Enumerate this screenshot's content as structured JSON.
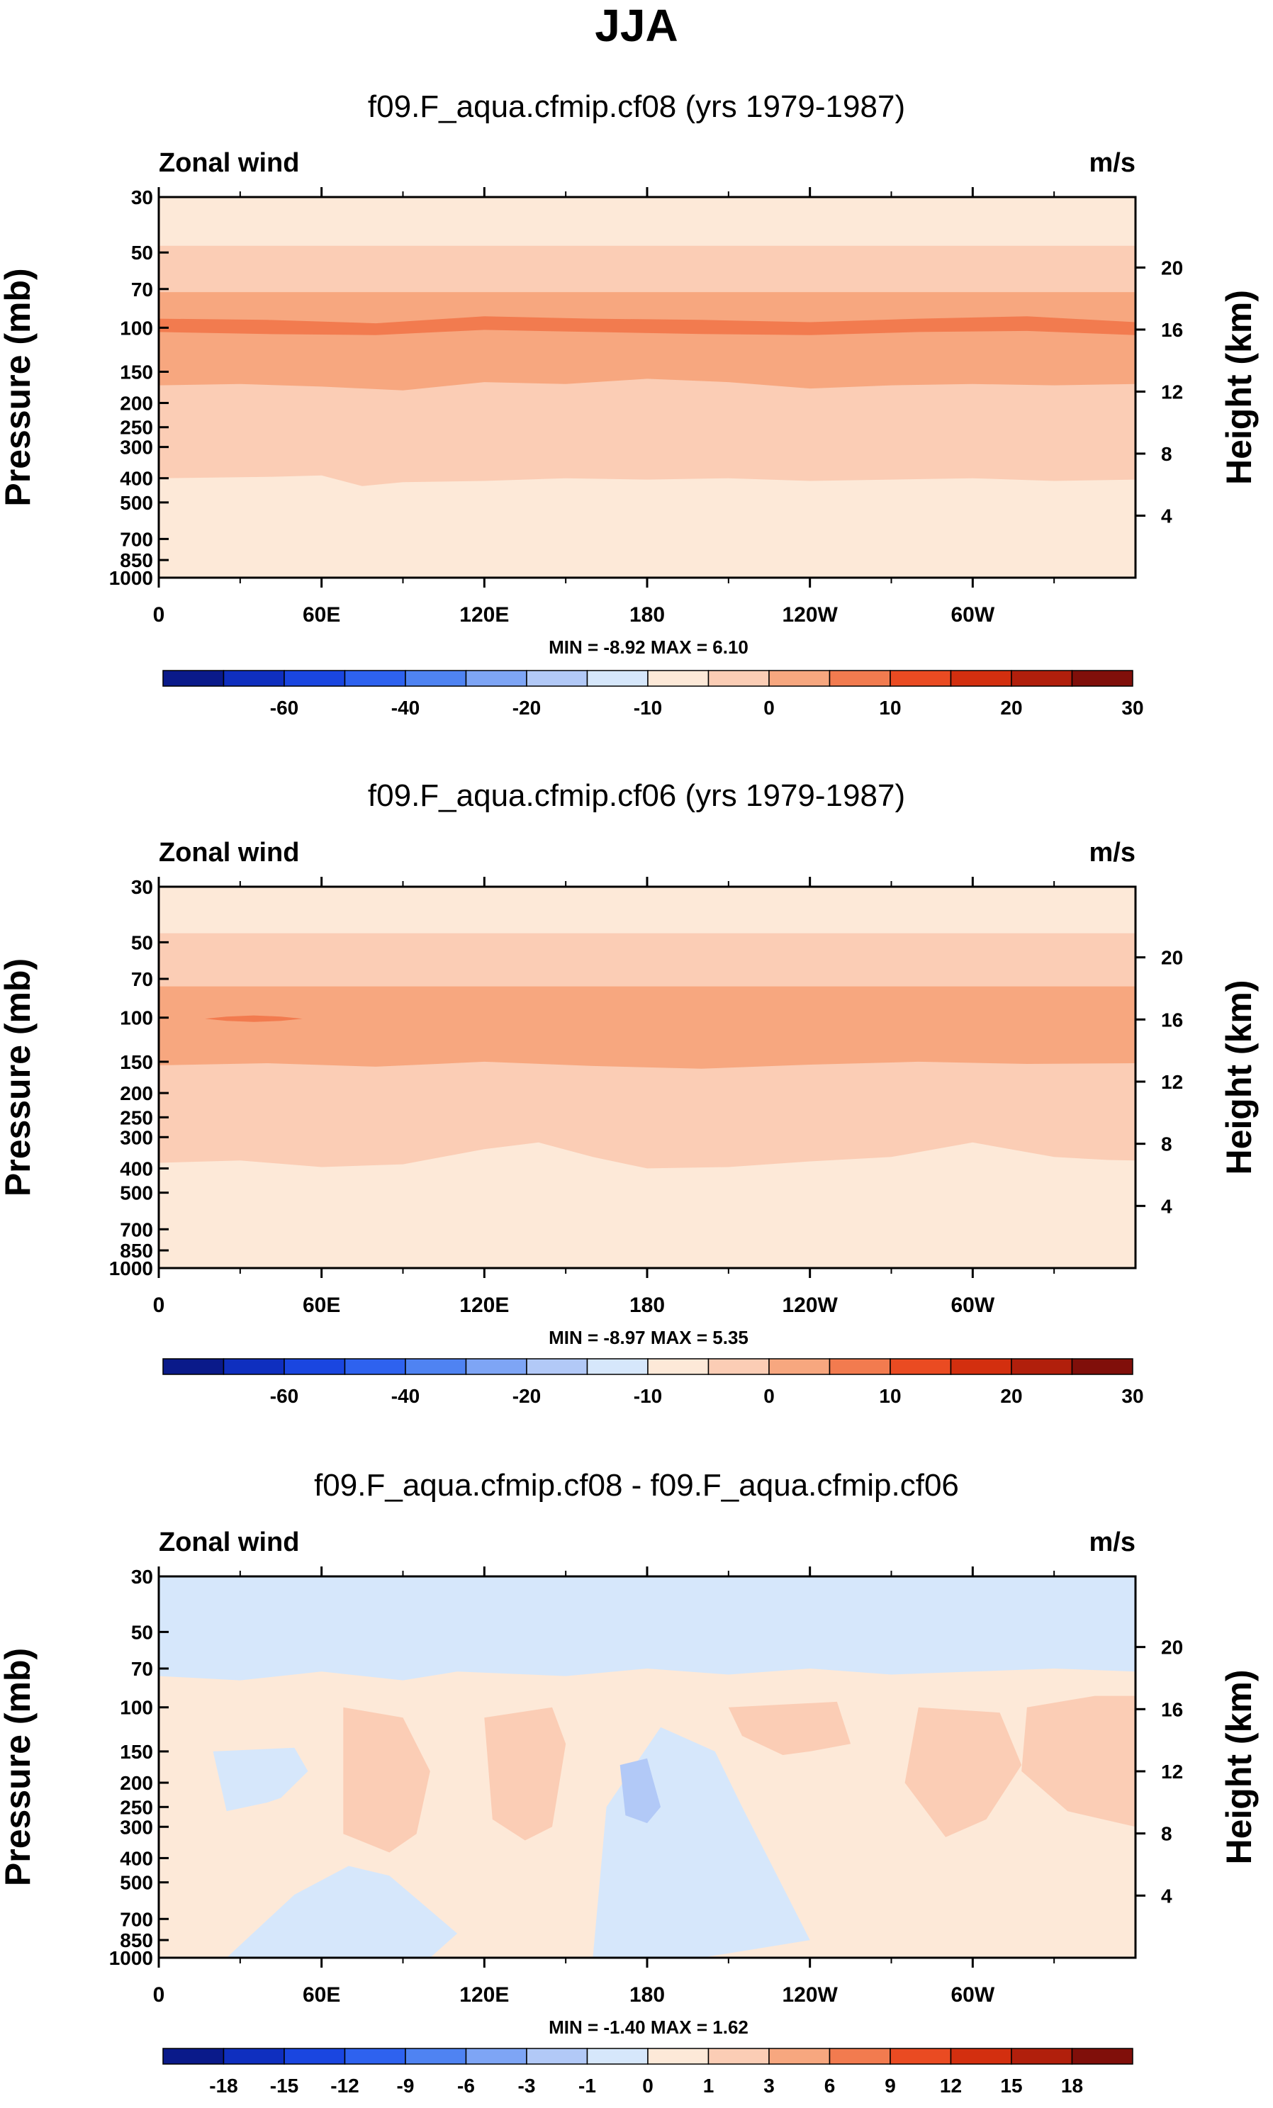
{
  "figure": {
    "season_title": "JJA"
  },
  "colors": {
    "wind_levels": [
      "#0a1a8a",
      "#0f2fbf",
      "#1a46e0",
      "#2e62ef",
      "#4f83f2",
      "#7ea5f5",
      "#b2c9f7",
      "#d6e7fb",
      "#fde9d8",
      "#fbcdb5",
      "#f7a77f",
      "#f27b4f",
      "#ea4b22",
      "#d32f0f",
      "#b11f0c",
      "#800f0a"
    ],
    "diff_levels": [
      "#0a1a8a",
      "#0f2fbf",
      "#1a46e0",
      "#2e62ef",
      "#4f83f2",
      "#7ea5f5",
      "#b2c9f7",
      "#d6e7fb",
      "#fde9d8",
      "#fbcdb5",
      "#f7a77f",
      "#f27b4f",
      "#ea4b22",
      "#d32f0f",
      "#b11f0c",
      "#800f0a"
    ]
  },
  "chart_data": [
    {
      "type": "heatmap",
      "title": "f09.F_aqua.cfmip.cf08 (yrs 1979-1987)",
      "left_label": "Zonal wind",
      "right_label": "m/s",
      "ylabel": "Pressure (mb)",
      "y2label": "Height (km)",
      "xticks": [
        "0",
        "60E",
        "120E",
        "180",
        "120W",
        "60W"
      ],
      "xtick_lon": [
        0,
        60,
        120,
        180,
        240,
        300
      ],
      "xlim": [
        0,
        360
      ],
      "yticks": [
        "30",
        "50",
        "70",
        "100",
        "150",
        "200",
        "250",
        "300",
        "400",
        "500",
        "700",
        "850",
        "1000"
      ],
      "ytick_values": [
        30,
        50,
        70,
        100,
        150,
        200,
        250,
        300,
        400,
        500,
        700,
        850,
        1000
      ],
      "ylim_mb": [
        30,
        1000
      ],
      "y2ticks": [
        "20",
        "16",
        "12",
        "8",
        "4"
      ],
      "y2tick_values": [
        20,
        16,
        12,
        8,
        4
      ],
      "stats": "MIN =  -8.92  MAX =   6.10",
      "colorbar_labels": [
        "-60",
        "-40",
        "-20",
        "-10",
        "0",
        "10",
        "20",
        "30"
      ],
      "colorbar_levels": [
        -70,
        -60,
        -50,
        -40,
        -30,
        -20,
        -15,
        -10,
        -5,
        0,
        5,
        10,
        15,
        20,
        25,
        30,
        35
      ],
      "colorbar_label_idx": [
        2,
        4,
        6,
        8,
        10,
        12,
        14,
        16
      ],
      "layers": [
        {
          "value": -2,
          "top_mb": 30,
          "bottom_mb": 1000
        },
        {
          "value": 2,
          "top_mb": 47,
          "bottom_mb": [
            [
              0,
              400
            ],
            [
              40,
              395
            ],
            [
              60,
              390
            ],
            [
              75,
              430
            ],
            [
              90,
              415
            ],
            [
              120,
              410
            ],
            [
              150,
              400
            ],
            [
              180,
              405
            ],
            [
              210,
              400
            ],
            [
              240,
              410
            ],
            [
              270,
              405
            ],
            [
              300,
              400
            ],
            [
              330,
              410
            ],
            [
              360,
              405
            ]
          ]
        },
        {
          "value": 7,
          "top_mb": 72,
          "bottom_mb": [
            [
              0,
              170
            ],
            [
              30,
              168
            ],
            [
              60,
              172
            ],
            [
              90,
              178
            ],
            [
              120,
              165
            ],
            [
              150,
              168
            ],
            [
              180,
              160
            ],
            [
              210,
              165
            ],
            [
              240,
              175
            ],
            [
              270,
              170
            ],
            [
              300,
              168
            ],
            [
              330,
              170
            ],
            [
              360,
              168
            ]
          ]
        },
        {
          "value": 12,
          "top_mb": [
            [
              0,
              92
            ],
            [
              40,
              93
            ],
            [
              80,
              96
            ],
            [
              120,
              90
            ],
            [
              160,
              92
            ],
            [
              200,
              93
            ],
            [
              240,
              95
            ],
            [
              280,
              92
            ],
            [
              320,
              90
            ],
            [
              360,
              95
            ]
          ],
          "bottom_mb": [
            [
              0,
              104
            ],
            [
              40,
              106
            ],
            [
              80,
              107
            ],
            [
              120,
              102
            ],
            [
              160,
              104
            ],
            [
              200,
              106
            ],
            [
              240,
              107
            ],
            [
              280,
              104
            ],
            [
              320,
              103
            ],
            [
              360,
              107
            ]
          ]
        }
      ]
    },
    {
      "type": "heatmap",
      "title": "f09.F_aqua.cfmip.cf06 (yrs 1979-1987)",
      "left_label": "Zonal wind",
      "right_label": "m/s",
      "ylabel": "Pressure (mb)",
      "y2label": "Height (km)",
      "xticks": [
        "0",
        "60E",
        "120E",
        "180",
        "120W",
        "60W"
      ],
      "xtick_lon": [
        0,
        60,
        120,
        180,
        240,
        300
      ],
      "xlim": [
        0,
        360
      ],
      "yticks": [
        "30",
        "50",
        "70",
        "100",
        "150",
        "200",
        "250",
        "300",
        "400",
        "500",
        "700",
        "850",
        "1000"
      ],
      "ytick_values": [
        30,
        50,
        70,
        100,
        150,
        200,
        250,
        300,
        400,
        500,
        700,
        850,
        1000
      ],
      "ylim_mb": [
        30,
        1000
      ],
      "y2ticks": [
        "20",
        "16",
        "12",
        "8",
        "4"
      ],
      "y2tick_values": [
        20,
        16,
        12,
        8,
        4
      ],
      "stats": "MIN =  -8.97  MAX =   5.35",
      "colorbar_labels": [
        "-60",
        "-40",
        "-20",
        "-10",
        "0",
        "10",
        "20",
        "30"
      ],
      "colorbar_levels": [
        -70,
        -60,
        -50,
        -40,
        -30,
        -20,
        -15,
        -10,
        -5,
        0,
        5,
        10,
        15,
        20,
        25,
        30,
        35
      ],
      "colorbar_label_idx": [
        2,
        4,
        6,
        8,
        10,
        12,
        14,
        16
      ],
      "layers": [
        {
          "value": -2,
          "top_mb": 30,
          "bottom_mb": 1000
        },
        {
          "value": 2,
          "top_mb": 46,
          "bottom_mb": [
            [
              0,
              380
            ],
            [
              30,
              372
            ],
            [
              60,
              395
            ],
            [
              90,
              385
            ],
            [
              120,
              335
            ],
            [
              140,
              315
            ],
            [
              160,
              360
            ],
            [
              180,
              400
            ],
            [
              210,
              395
            ],
            [
              240,
              375
            ],
            [
              270,
              360
            ],
            [
              300,
              315
            ],
            [
              330,
              360
            ],
            [
              350,
              370
            ],
            [
              360,
              372
            ]
          ]
        },
        {
          "value": 7,
          "top_mb": 75,
          "bottom_mb": [
            [
              0,
              155
            ],
            [
              40,
              152
            ],
            [
              80,
              157
            ],
            [
              120,
              150
            ],
            [
              160,
              156
            ],
            [
              200,
              160
            ],
            [
              240,
              154
            ],
            [
              280,
              150
            ],
            [
              320,
              153
            ],
            [
              360,
              152
            ]
          ]
        },
        {
          "value": 12,
          "top_mb": [
            [
              17,
              101
            ],
            [
              25,
              99
            ],
            [
              35,
              98
            ],
            [
              45,
              99
            ],
            [
              53,
              101
            ]
          ],
          "bottom_mb": [
            [
              17,
              101
            ],
            [
              25,
              103
            ],
            [
              35,
              104
            ],
            [
              45,
              103
            ],
            [
              53,
              101
            ]
          ]
        }
      ]
    },
    {
      "type": "heatmap",
      "title": "f09.F_aqua.cfmip.cf08 - f09.F_aqua.cfmip.cf06",
      "left_label": "Zonal wind",
      "right_label": "m/s",
      "ylabel": "Pressure (mb)",
      "y2label": "Height (km)",
      "xticks": [
        "0",
        "60E",
        "120E",
        "180",
        "120W",
        "60W"
      ],
      "xtick_lon": [
        0,
        60,
        120,
        180,
        240,
        300
      ],
      "xlim": [
        0,
        360
      ],
      "yticks": [
        "30",
        "50",
        "70",
        "100",
        "150",
        "200",
        "250",
        "300",
        "400",
        "500",
        "700",
        "850",
        "1000"
      ],
      "ytick_values": [
        30,
        50,
        70,
        100,
        150,
        200,
        250,
        300,
        400,
        500,
        700,
        850,
        1000
      ],
      "ylim_mb": [
        30,
        1000
      ],
      "y2ticks": [
        "20",
        "16",
        "12",
        "8",
        "4"
      ],
      "y2tick_values": [
        20,
        16,
        12,
        8,
        4
      ],
      "stats": "MIN =  -1.40  MAX =   1.62",
      "colorbar_labels": [
        "-18",
        "-15",
        "-12",
        "-9",
        "-6",
        "-3",
        "-1",
        "0",
        "1",
        "3",
        "6",
        "9",
        "12",
        "15",
        "18"
      ],
      "colorbar_levels": [
        -21,
        -18,
        -15,
        -12,
        -9,
        -6,
        -3,
        -1,
        0,
        1,
        3,
        6,
        9,
        12,
        15,
        18,
        21
      ],
      "colorbar_label_idx": [
        1,
        2,
        3,
        4,
        5,
        6,
        7,
        8,
        9,
        10,
        11,
        12,
        13,
        14,
        15
      ],
      "layers": [
        {
          "value": 0.5,
          "top_mb": 30,
          "bottom_mb": 1000
        },
        {
          "value": -0.5,
          "top_mb": 30,
          "bottom_mb": [
            [
              0,
              75
            ],
            [
              30,
              78
            ],
            [
              60,
              72
            ],
            [
              90,
              78
            ],
            [
              110,
              72
            ],
            [
              150,
              75
            ],
            [
              180,
              70
            ],
            [
              210,
              74
            ],
            [
              240,
              70
            ],
            [
              270,
              74
            ],
            [
              300,
              72
            ],
            [
              330,
              70
            ],
            [
              360,
              72
            ]
          ]
        },
        {
          "value": -0.5,
          "top_mb": [
            [
              20,
              150
            ],
            [
              50,
              145
            ],
            [
              55,
              180
            ],
            [
              45,
              230
            ]
          ],
          "bottom_mb": [
            [
              20,
              150
            ],
            [
              25,
              260
            ],
            [
              40,
              240
            ],
            [
              45,
              230
            ]
          ]
        },
        {
          "value": -0.5,
          "top_mb": [
            [
              25,
              1000
            ],
            [
              50,
              560
            ],
            [
              70,
              430
            ],
            [
              85,
              470
            ]
          ],
          "bottom_mb": [
            [
              25,
              1000
            ],
            [
              100,
              1000
            ],
            [
              110,
              800
            ],
            [
              85,
              470
            ]
          ]
        },
        {
          "value": -0.5,
          "top_mb": [
            [
              160,
              1000
            ],
            [
              165,
              250
            ],
            [
              185,
              120
            ],
            [
              205,
              150
            ],
            [
              215,
              250
            ]
          ],
          "bottom_mb": [
            [
              160,
              1000
            ],
            [
              200,
              1000
            ],
            [
              240,
              850
            ],
            [
              215,
              250
            ]
          ]
        },
        {
          "value": 2,
          "top_mb": [
            [
              68,
              100
            ],
            [
              90,
              110
            ],
            [
              100,
              180
            ],
            [
              95,
              320
            ]
          ],
          "bottom_mb": [
            [
              68,
              100
            ],
            [
              68,
              320
            ],
            [
              85,
              380
            ],
            [
              95,
              320
            ]
          ]
        },
        {
          "value": 2,
          "top_mb": [
            [
              120,
              110
            ],
            [
              145,
              100
            ],
            [
              150,
              140
            ],
            [
              145,
              300
            ]
          ],
          "bottom_mb": [
            [
              120,
              110
            ],
            [
              123,
              280
            ],
            [
              135,
              340
            ],
            [
              145,
              300
            ]
          ]
        },
        {
          "value": 2,
          "top_mb": [
            [
              210,
              100
            ],
            [
              250,
              95
            ],
            [
              255,
              140
            ],
            [
              240,
              150
            ]
          ],
          "bottom_mb": [
            [
              210,
              100
            ],
            [
              215,
              130
            ],
            [
              230,
              155
            ],
            [
              240,
              150
            ]
          ]
        },
        {
          "value": 2,
          "top_mb": [
            [
              280,
              100
            ],
            [
              310,
              105
            ],
            [
              318,
              170
            ],
            [
              305,
              280
            ]
          ],
          "bottom_mb": [
            [
              280,
              100
            ],
            [
              275,
              200
            ],
            [
              290,
              330
            ],
            [
              305,
              280
            ]
          ]
        },
        {
          "value": 2,
          "top_mb": [
            [
              320,
              100
            ],
            [
              345,
              90
            ],
            [
              360,
              90
            ],
            [
              360,
              300
            ]
          ],
          "bottom_mb": [
            [
              320,
              100
            ],
            [
              318,
              180
            ],
            [
              335,
              260
            ],
            [
              360,
              300
            ]
          ]
        },
        {
          "value": -2,
          "top_mb": [
            [
              170,
              170
            ],
            [
              180,
              160
            ],
            [
              185,
              250
            ]
          ],
          "bottom_mb": [
            [
              170,
              170
            ],
            [
              172,
              270
            ],
            [
              180,
              290
            ],
            [
              185,
              250
            ]
          ]
        }
      ]
    }
  ]
}
